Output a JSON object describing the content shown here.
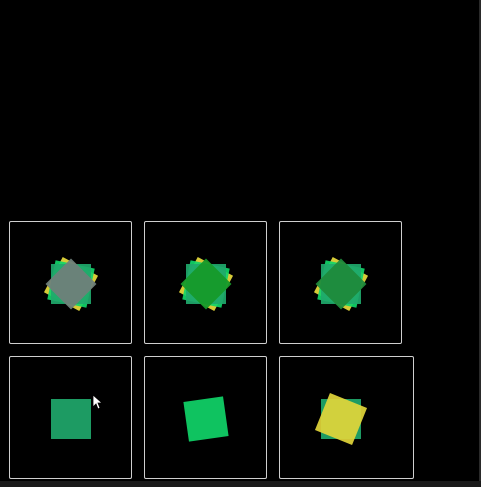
{
  "colors": {
    "background": "#000000",
    "border": "#cfcfcf",
    "base_square": "#1fa86b",
    "bright_green": "#10d468",
    "yellow": "#e2d63a",
    "gray": "#6f7f7a",
    "dark_green": "#169a2a",
    "mid_green": "#1f8a3c"
  },
  "cells": [
    {
      "name": "cell-gray-overlay",
      "row": 0,
      "col": 0,
      "layers": [
        {
          "shape": "square",
          "color": "yellow",
          "rotation": 28
        },
        {
          "shape": "square",
          "color": "bright_green",
          "rotation": 12
        },
        {
          "shape": "square",
          "color": "base_square",
          "rotation": 0
        },
        {
          "shape": "diamond",
          "color": "gray",
          "rotation": 45
        }
      ]
    },
    {
      "name": "cell-green-overlay",
      "row": 0,
      "col": 1,
      "layers": [
        {
          "shape": "square",
          "color": "yellow",
          "rotation": 28
        },
        {
          "shape": "square",
          "color": "bright_green",
          "rotation": 12
        },
        {
          "shape": "square",
          "color": "base_square",
          "rotation": 0
        },
        {
          "shape": "diamond",
          "color": "dark_green",
          "rotation": 45
        }
      ]
    },
    {
      "name": "cell-darkgreen-overlay",
      "row": 0,
      "col": 2,
      "layers": [
        {
          "shape": "square",
          "color": "yellow",
          "rotation": 28
        },
        {
          "shape": "square",
          "color": "bright_green",
          "rotation": 12
        },
        {
          "shape": "square",
          "color": "base_square",
          "rotation": 0
        },
        {
          "shape": "diamond",
          "color": "mid_green",
          "rotation": 45
        }
      ]
    },
    {
      "name": "cell-base-square",
      "row": 1,
      "col": 0,
      "layers": [
        {
          "shape": "square",
          "color": "base_square",
          "rotation": 0
        }
      ]
    },
    {
      "name": "cell-rotated-green-square",
      "row": 1,
      "col": 1,
      "layers": [
        {
          "shape": "square",
          "color": "bright_green",
          "rotation": -8
        }
      ]
    },
    {
      "name": "cell-yellow-square",
      "row": 1,
      "col": 2,
      "layers": [
        {
          "shape": "square",
          "color": "base_square",
          "rotation": 0
        },
        {
          "shape": "square",
          "color": "yellow",
          "rotation": 22
        }
      ]
    }
  ]
}
